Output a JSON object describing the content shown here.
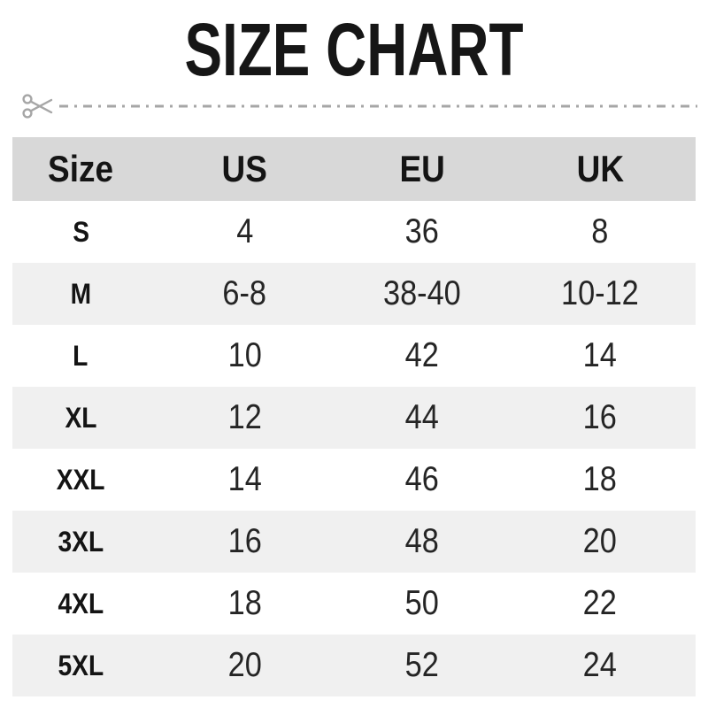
{
  "title": "SIZE CHART",
  "icons": {
    "scissors": "scissors-icon"
  },
  "colors": {
    "header_bg": "#d8d8d8",
    "row_alt_bg": "#f0f0f0",
    "row_bg": "#ffffff",
    "title_text": "#161616",
    "body_text": "#252525",
    "cutline_gray": "#a6a6a6"
  },
  "cut_line_style": "dash-dot",
  "chart_data": {
    "type": "table",
    "title": "SIZE CHART",
    "columns": [
      "Size",
      "US",
      "EU",
      "UK"
    ],
    "rows": [
      [
        "S",
        "4",
        "36",
        "8"
      ],
      [
        "M",
        "6-8",
        "38-40",
        "10-12"
      ],
      [
        "L",
        "10",
        "42",
        "14"
      ],
      [
        "XL",
        "12",
        "44",
        "16"
      ],
      [
        "XXL",
        "14",
        "46",
        "18"
      ],
      [
        "3XL",
        "16",
        "48",
        "20"
      ],
      [
        "4XL",
        "18",
        "50",
        "22"
      ],
      [
        "5XL",
        "20",
        "52",
        "24"
      ]
    ]
  }
}
